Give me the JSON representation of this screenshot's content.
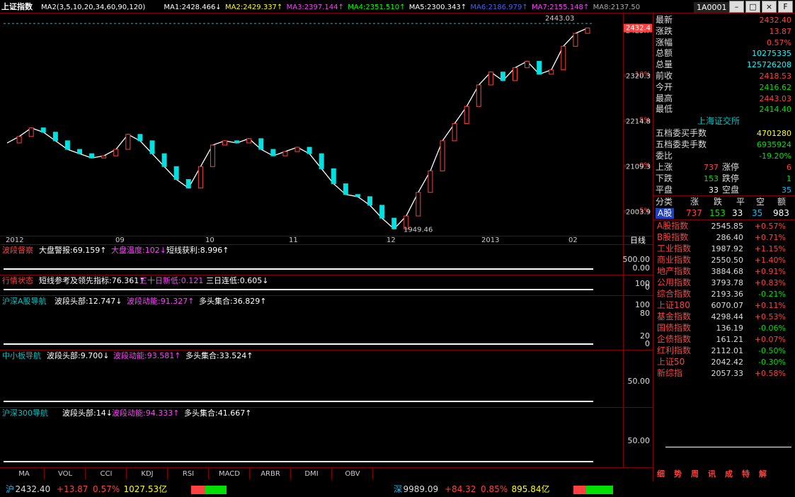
{
  "header": {
    "title": "上证指数",
    "ma_legend": [
      "MA2(3,5,10,20,34,60,90,120)",
      "MA1:2428.466↓",
      "MA2:2429.337↑",
      "MA3:2397.144↑",
      "MA4:2351.510↑",
      "MA5:2300.343↑",
      "MA6:2186.979↑",
      "MA7:2155.148↑",
      "MA8:2137.50"
    ],
    "code": "1A0001"
  },
  "chart_data": {
    "type": "line",
    "color": "#ffffff",
    "values": [
      2165,
      2180,
      2200,
      2190,
      2170,
      2150,
      2140,
      2130,
      2135,
      2150,
      2185,
      2170,
      2140,
      2110,
      2080,
      2060,
      2110,
      2160,
      2170,
      2165,
      2175,
      2150,
      2135,
      2145,
      2155,
      2140,
      2105,
      2070,
      2045,
      2040,
      2020,
      1990,
      1965,
      1995,
      2050,
      2100,
      2170,
      2210,
      2250,
      2300,
      2330,
      2310,
      2340,
      2355,
      2325,
      2335,
      2390,
      2420,
      2432.4
    ],
    "ylim": [
      1949,
      2468
    ],
    "yticks": [
      2425.7,
      {
        "value": 2324.3,
        "label": "10%"
      },
      2320.3,
      {
        "value": 2218.6,
        "label": "5%"
      },
      2214.8,
      {
        "value": 2113,
        "label": "0%"
      },
      2109.3,
      {
        "value": 2007.4,
        "label": "-5%"
      },
      2003.9
    ],
    "last": 2432.4,
    "high": 2443.03,
    "low": 1949.46
  },
  "date_labels": [
    "2012",
    "09",
    "10",
    "11",
    "12",
    "2013",
    "02"
  ],
  "period": "日线",
  "panels": [
    {
      "title": "波段督察",
      "items": [
        "大盘警报:69.159↑",
        "大盘温度:102↓",
        "短线获利:8.996↑"
      ],
      "axis": [
        "500.00",
        "0.00"
      ]
    },
    {
      "title": "行情状态",
      "items": [
        "短线参考及领先指标:76.361↑",
        "三十日新低:0.121",
        "三日连低:0.605↓"
      ],
      "axis": [
        "100",
        "0"
      ]
    },
    {
      "title": "沪深A股导航",
      "items": [
        "波段头部:12.747↓",
        "波段动能:91.327↑",
        "多头集合:36.829↑"
      ],
      "axis": [
        "100",
        "80",
        "20",
        "0"
      ]
    },
    {
      "title": "中小板导航",
      "items": [
        "波段头部:9.700↓",
        "波段动能:93.581↑",
        "多头集合:33.524↑"
      ],
      "axis": [
        "50.00"
      ]
    },
    {
      "title": "沪深300导航",
      "items": [
        "波段头部:14↓",
        "波段动能:94.333↑",
        "多头集合:41.667↑"
      ],
      "axis": [
        "50.00"
      ]
    }
  ],
  "indicator_tabs": [
    "MA",
    "VOL",
    "CCI",
    "KDJ",
    "RSI",
    "MACD",
    "ARBR",
    "DMI",
    "OBV"
  ],
  "quote": {
    "rows": [
      [
        "最新",
        "2432.40"
      ],
      [
        "涨跌",
        "13.87"
      ],
      [
        "涨幅",
        "0.57%"
      ],
      [
        "总额",
        "10275335"
      ],
      [
        "总量",
        "125726208"
      ],
      [
        "前收",
        "2418.53"
      ],
      [
        "今开",
        "2416.62"
      ],
      [
        "最高",
        "2443.03"
      ],
      [
        "最低",
        "2414.40"
      ]
    ],
    "exchange": "上海证交所",
    "orders": [
      [
        "五档委买手数",
        "4701280"
      ],
      [
        "五档委卖手数",
        "6935924"
      ],
      [
        "委比",
        "-19.20%"
      ]
    ],
    "breadth": [
      [
        "上涨",
        "737",
        "涨停",
        "6"
      ],
      [
        "下跌",
        "153",
        "跌停",
        "1"
      ],
      [
        "平盘",
        "33",
        "空盘",
        "35"
      ]
    ],
    "summary_header": [
      "分类",
      "涨",
      "跌",
      "平",
      "空",
      "额"
    ],
    "summary_row": [
      "A股",
      "737",
      "153",
      "33",
      "35",
      "983"
    ]
  },
  "indices": [
    [
      "A股指数",
      "2545.85",
      "+0.57%"
    ],
    [
      "B股指数",
      "286.40",
      "+0.71%"
    ],
    [
      "工业指数",
      "1987.92",
      "+1.15%"
    ],
    [
      "商业指数",
      "2550.50",
      "+1.40%"
    ],
    [
      "地产指数",
      "3884.68",
      "+0.91%"
    ],
    [
      "公用指数",
      "3793.78",
      "+0.83%"
    ],
    [
      "综合指数",
      "2193.36",
      "-0.21%"
    ],
    [
      "上证180",
      "6070.07",
      "+0.11%"
    ],
    [
      "基金指数",
      "4298.44",
      "+0.53%"
    ],
    [
      "国债指数",
      "136.19",
      "-0.06%"
    ],
    [
      "企债指数",
      "161.21",
      "+0.07%"
    ],
    [
      "红利指数",
      "2112.01",
      "-0.50%"
    ],
    [
      "上证50",
      "2042.42",
      "-0.30%"
    ],
    [
      "新综指",
      "2057.33",
      "+0.58%"
    ]
  ],
  "side_tabs": [
    "细",
    "势",
    "周",
    "讯",
    "成",
    "特",
    "解"
  ],
  "status": {
    "sh": [
      "沪",
      "2432.40",
      "+13.87",
      "0.57%",
      "1027.53亿"
    ],
    "sz": [
      "深",
      "9989.09",
      "+84.32",
      "0.85%",
      "895.84亿"
    ]
  }
}
